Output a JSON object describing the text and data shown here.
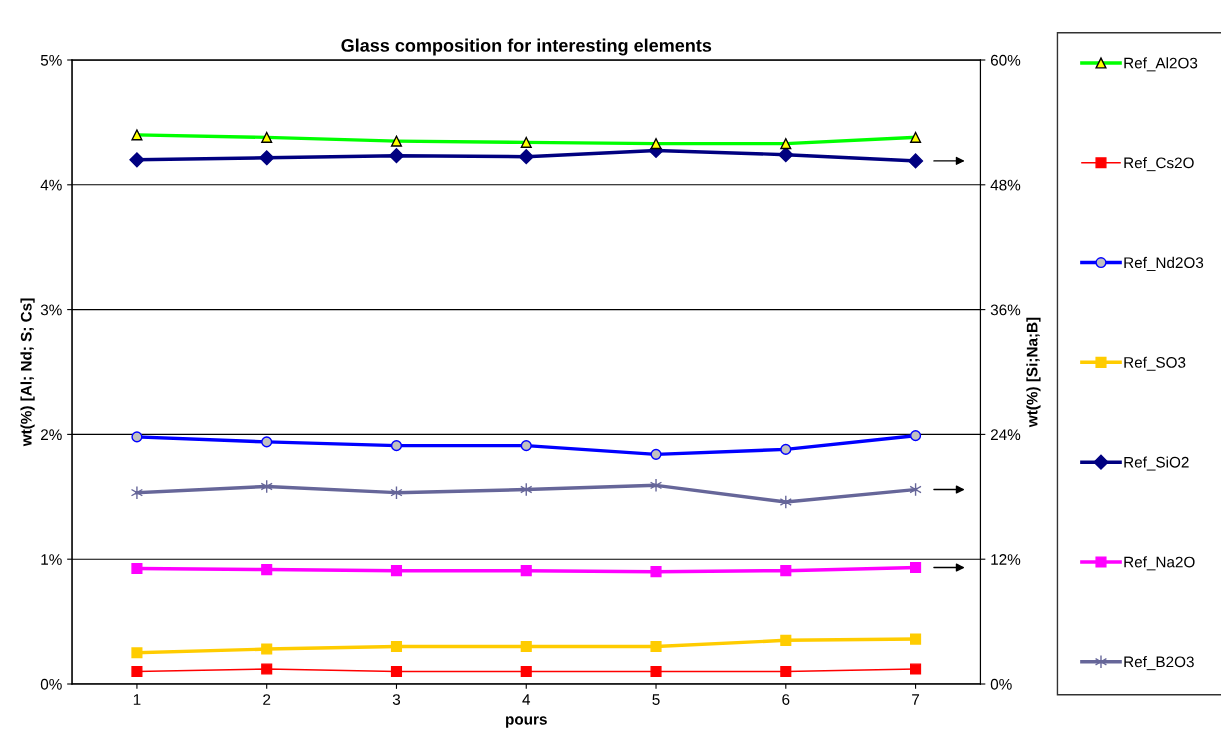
{
  "chart_data": {
    "type": "line",
    "title": "Glass composition for interesting elements",
    "xlabel": "pours",
    "ylabel": "wt(%) [Al; Nd; S; Cs]",
    "y2label": "wt(%) [Si;Na;B]",
    "x": [
      1,
      2,
      3,
      4,
      5,
      6,
      7
    ],
    "xlim": [
      0.5,
      7.5
    ],
    "xticks": [
      1,
      2,
      3,
      4,
      5,
      6,
      7
    ],
    "ylim": [
      0,
      5
    ],
    "yticks": [
      {
        "value": 0,
        "label": "0%"
      },
      {
        "value": 1,
        "label": "1%"
      },
      {
        "value": 2,
        "label": "2%"
      },
      {
        "value": 3,
        "label": "3%"
      },
      {
        "value": 4,
        "label": "4%"
      },
      {
        "value": 5,
        "label": "5%"
      }
    ],
    "y2lim": [
      0,
      60
    ],
    "y2ticks": [
      {
        "value": 0,
        "label": "0%"
      },
      {
        "value": 12,
        "label": "12%"
      },
      {
        "value": 24,
        "label": "24%"
      },
      {
        "value": 36,
        "label": "36%"
      },
      {
        "value": 48,
        "label": "48%"
      },
      {
        "value": 60,
        "label": "60%"
      }
    ],
    "grid": "y",
    "legend": "right",
    "line_style": "solid",
    "series": [
      {
        "name": "Ref_Al2O3",
        "color": "#00ff00",
        "marker": "triangle",
        "values": [
          4.4,
          4.38,
          4.35,
          4.34,
          4.33,
          4.33,
          4.38
        ]
      },
      {
        "name": "Ref_Cs2O",
        "color": "#ff0000",
        "marker": "square",
        "values": [
          0.1,
          0.12,
          0.1,
          0.1,
          0.1,
          0.1,
          0.12
        ]
      },
      {
        "name": "Ref_Nd2O3",
        "color": "#0000ff",
        "marker": "circle",
        "values": [
          1.98,
          1.94,
          1.91,
          1.91,
          1.84,
          1.88,
          1.99
        ]
      },
      {
        "name": "Ref_SO3",
        "color": "#ffcc00",
        "marker": "square",
        "values": [
          0.25,
          0.28,
          0.3,
          0.3,
          0.3,
          0.35,
          0.36
        ]
      },
      {
        "name": "Ref_SiO2",
        "color": "#000080",
        "marker": "diamond",
        "axis": "y2",
        "values": [
          50.4,
          50.6,
          50.8,
          50.7,
          51.3,
          50.9,
          50.3
        ]
      },
      {
        "name": "Ref_Na2O",
        "color": "#ff00ff",
        "marker": "square",
        "axis": "y2",
        "values": [
          11.1,
          11.0,
          10.9,
          10.9,
          10.8,
          10.9,
          11.2
        ]
      },
      {
        "name": "Ref_B2O3",
        "color": "#666699",
        "marker": "cross",
        "axis": "y2",
        "values": [
          18.4,
          19.0,
          18.4,
          18.7,
          19.1,
          17.5,
          18.7
        ]
      }
    ]
  }
}
